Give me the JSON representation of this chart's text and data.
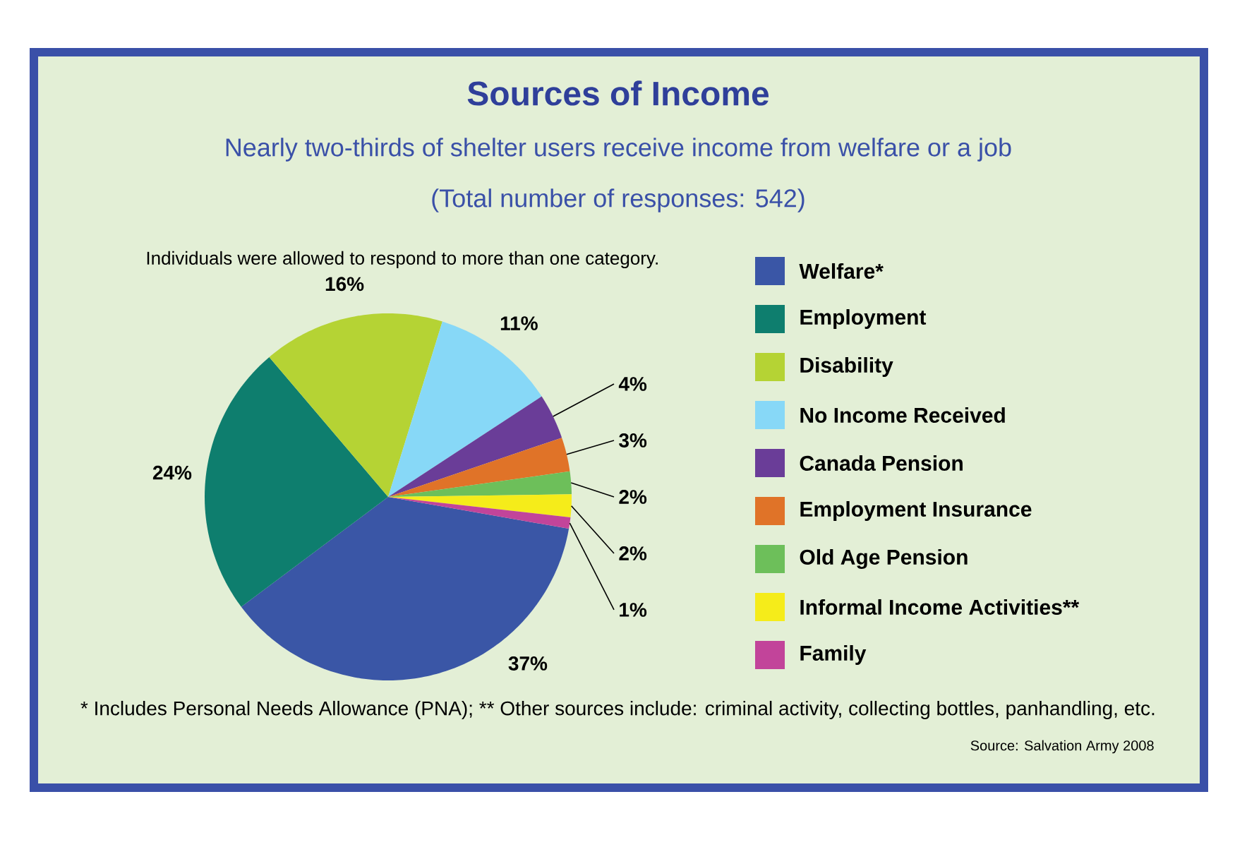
{
  "chart_data": {
    "type": "pie",
    "title": "Sources of Income",
    "subtitle": "Nearly two-thirds of shelter users receive income from welfare or a job",
    "categories": [
      "Welfare*",
      "Employment",
      "Disability",
      "No Income Received",
      "Canada Pension",
      "Employment Insurance",
      "Old Age Pension",
      "Informal Income Activities**",
      "Family"
    ],
    "values": [
      37,
      24,
      16,
      11,
      4,
      3,
      2,
      2,
      1
    ],
    "colors": [
      "#3a56a6",
      "#0e7e6e",
      "#b5d334",
      "#87d8f7",
      "#6a3d98",
      "#e07328",
      "#6dbf5a",
      "#f5ec1a",
      "#c2449a"
    ],
    "value_labels": [
      "37%",
      "24%",
      "16%",
      "11%",
      "4%",
      "3%",
      "2%",
      "2%",
      "1%"
    ],
    "legend": "right",
    "annotations": [
      "(Total number of responses: 542)",
      "Individuals were allowed to respond to more than one category.",
      "* Includes Personal Needs Allowance (PNA); ** Other sources include: criminal activity, collecting bottles, panhandling, etc.",
      "Source: Salvation Army 2008"
    ]
  }
}
